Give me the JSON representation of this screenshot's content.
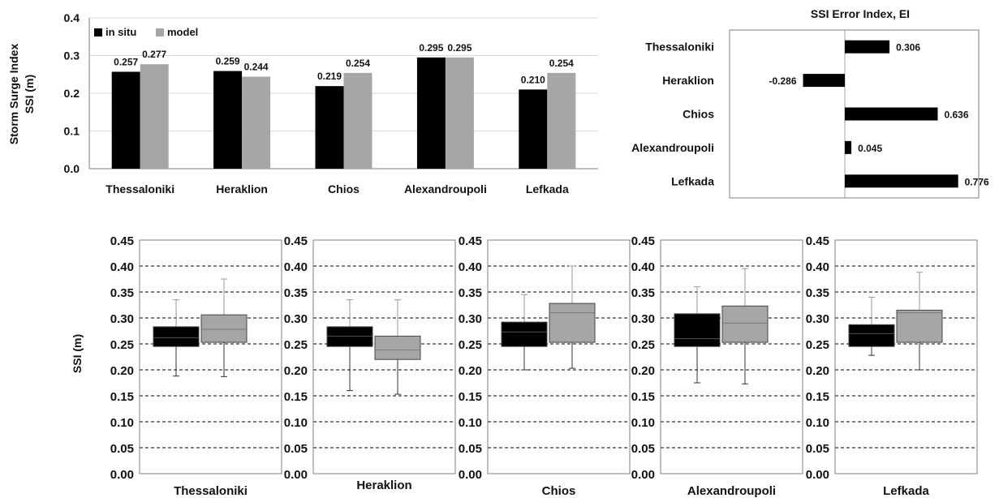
{
  "colors": {
    "insitu": "#000000",
    "model": "#a6a6a6",
    "grid": "#d9d9d9",
    "axis": "#7f7f7f"
  },
  "chart_data": [
    {
      "type": "bar",
      "ylabel_lines": [
        "Storm Surge Index",
        "SSI (m)"
      ],
      "ylim": [
        0,
        0.4
      ],
      "yticks": [
        "0.0",
        "0.1",
        "0.2",
        "0.3",
        "0.4"
      ],
      "categories": [
        "Thessaloniki",
        "Heraklion",
        "Chios",
        "Alexandroupoli",
        "Lefkada"
      ],
      "series": [
        {
          "name": "in situ",
          "values": [
            0.257,
            0.259,
            0.219,
            0.295,
            0.21
          ],
          "labels": [
            "0.257",
            "0.259",
            "0.219",
            "0.295",
            "0.210"
          ]
        },
        {
          "name": "model",
          "values": [
            0.277,
            0.244,
            0.254,
            0.295,
            0.254
          ],
          "labels": [
            "0.277",
            "0.244",
            "0.254",
            "0.295",
            "0.254"
          ]
        }
      ],
      "legend": "top-left",
      "grid": true
    },
    {
      "type": "bar",
      "orientation": "horizontal",
      "title": "SSI Error Index, EI",
      "categories": [
        "Thessaloniki",
        "Heraklion",
        "Chios",
        "Alexandroupoli",
        "Lefkada"
      ],
      "values": [
        0.306,
        -0.286,
        0.636,
        0.045,
        0.776
      ],
      "labels": [
        "0.306",
        "-0.286",
        "0.636",
        "0.045",
        "0.776"
      ]
    },
    {
      "type": "boxplot",
      "ylabel": "SSI (m)",
      "ylim": [
        0,
        0.45
      ],
      "yticks": [
        "0.00",
        "0.05",
        "0.10",
        "0.15",
        "0.20",
        "0.25",
        "0.30",
        "0.35",
        "0.40",
        "0.45"
      ],
      "grid": true,
      "panels": [
        {
          "station": "Thessaloniki",
          "insitu": {
            "min": 0.188,
            "q1": 0.245,
            "median": 0.262,
            "q3": 0.283,
            "max": 0.335
          },
          "model": {
            "min": 0.187,
            "q1": 0.253,
            "median": 0.278,
            "q3": 0.306,
            "max": 0.375
          }
        },
        {
          "station": "Heraklion",
          "insitu": {
            "min": 0.16,
            "q1": 0.245,
            "median": 0.265,
            "q3": 0.283,
            "max": 0.335
          },
          "model": {
            "min": 0.153,
            "q1": 0.22,
            "median": 0.238,
            "q3": 0.265,
            "max": 0.335
          }
        },
        {
          "station": "Chios",
          "insitu": {
            "min": 0.2,
            "q1": 0.245,
            "median": 0.273,
            "q3": 0.292,
            "max": 0.345
          },
          "model": {
            "min": 0.203,
            "q1": 0.253,
            "median": 0.31,
            "q3": 0.328,
            "max": 0.4
          }
        },
        {
          "station": "Alexandroupoli",
          "insitu": {
            "min": 0.175,
            "q1": 0.245,
            "median": 0.26,
            "q3": 0.308,
            "max": 0.36
          },
          "model": {
            "min": 0.173,
            "q1": 0.253,
            "median": 0.29,
            "q3": 0.323,
            "max": 0.395
          }
        },
        {
          "station": "Lefkada",
          "insitu": {
            "min": 0.228,
            "q1": 0.245,
            "median": 0.27,
            "q3": 0.287,
            "max": 0.34
          },
          "model": {
            "min": 0.2,
            "q1": 0.253,
            "median": 0.31,
            "q3": 0.315,
            "max": 0.388
          }
        }
      ]
    }
  ]
}
